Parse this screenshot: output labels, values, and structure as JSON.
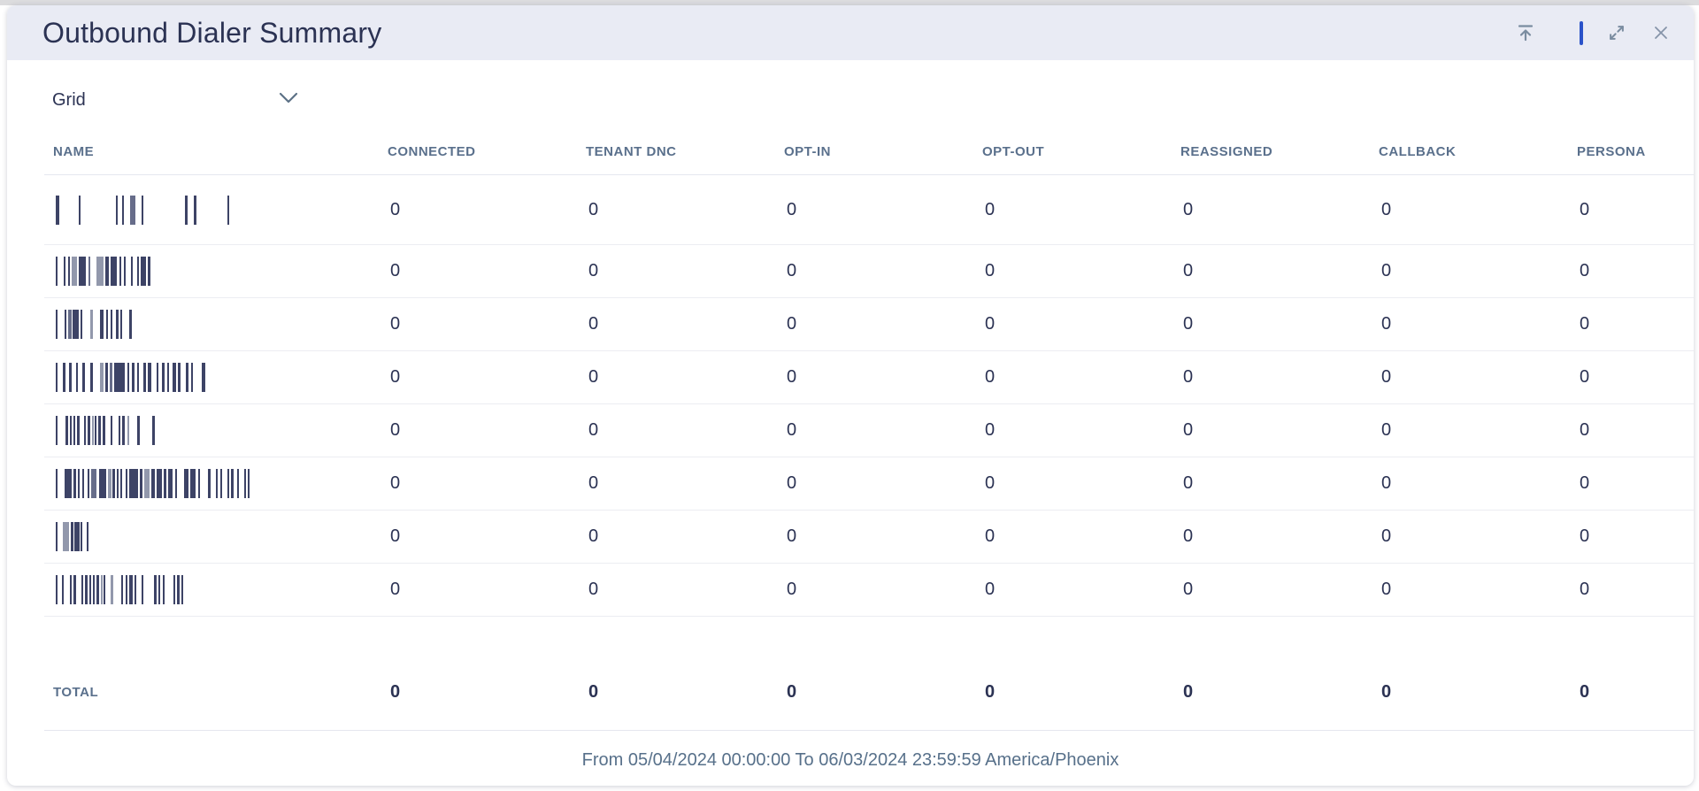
{
  "widget": {
    "title": "Outbound Dialer Summary"
  },
  "toolbar": {
    "icons": [
      {
        "name": "collapse-to-top-icon"
      },
      {
        "name": "drag-handle-bar"
      },
      {
        "name": "expand-icon"
      },
      {
        "name": "close-icon"
      }
    ]
  },
  "view_selector": {
    "value": "Grid"
  },
  "table": {
    "columns": [
      "NAME",
      "CONNECTED",
      "TENANT DNC",
      "OPT-IN",
      "OPT-OUT",
      "REASSIGNED",
      "CALLBACK",
      "PERSONA"
    ],
    "rows": [
      {
        "name_redacted": true,
        "bars": [
          [
            4,
            22,
            0
          ],
          [
            2,
            40,
            0
          ],
          [
            2,
            5,
            0
          ],
          [
            2,
            7,
            0
          ],
          [
            6,
            7,
            2
          ],
          [
            2,
            47,
            0
          ],
          [
            3,
            7,
            0
          ],
          [
            3,
            35,
            0
          ],
          [
            2,
            0,
            0
          ]
        ],
        "values": [
          "0",
          "0",
          "0",
          "0",
          "0",
          "0",
          "0"
        ]
      },
      {
        "name_redacted": true,
        "bars": [
          [
            2,
            7,
            0
          ],
          [
            2,
            3,
            0
          ],
          [
            2,
            2,
            0
          ],
          [
            6,
            2,
            1
          ],
          [
            8,
            3,
            0
          ],
          [
            2,
            7,
            2
          ],
          [
            8,
            2,
            1
          ],
          [
            4,
            2,
            0
          ],
          [
            7,
            3,
            0
          ],
          [
            2,
            3,
            0
          ],
          [
            2,
            6,
            0
          ],
          [
            2,
            5,
            0
          ],
          [
            2,
            2,
            0
          ],
          [
            6,
            2,
            0
          ],
          [
            3,
            0,
            0
          ]
        ],
        "values": [
          "0",
          "0",
          "0",
          "0",
          "0",
          "0",
          "0"
        ]
      },
      {
        "name_redacted": true,
        "bars": [
          [
            2,
            8,
            0
          ],
          [
            2,
            2,
            0
          ],
          [
            4,
            1,
            2
          ],
          [
            7,
            2,
            0
          ],
          [
            2,
            9,
            0
          ],
          [
            3,
            8,
            1
          ],
          [
            4,
            3,
            0
          ],
          [
            2,
            3,
            0
          ],
          [
            2,
            4,
            0
          ],
          [
            3,
            2,
            0
          ],
          [
            2,
            8,
            0
          ],
          [
            3,
            0,
            0
          ]
        ],
        "values": [
          "0",
          "0",
          "0",
          "0",
          "0",
          "0",
          "0"
        ]
      },
      {
        "name_redacted": true,
        "bars": [
          [
            2,
            6,
            0
          ],
          [
            3,
            4,
            0
          ],
          [
            3,
            5,
            0
          ],
          [
            2,
            5,
            0
          ],
          [
            3,
            6,
            0
          ],
          [
            3,
            8,
            0
          ],
          [
            4,
            2,
            1
          ],
          [
            3,
            2,
            0
          ],
          [
            3,
            2,
            2
          ],
          [
            12,
            3,
            0
          ],
          [
            2,
            3,
            0
          ],
          [
            3,
            3,
            0
          ],
          [
            2,
            5,
            0
          ],
          [
            3,
            2,
            0
          ],
          [
            4,
            6,
            0
          ],
          [
            2,
            4,
            0
          ],
          [
            3,
            3,
            0
          ],
          [
            2,
            4,
            0
          ],
          [
            4,
            2,
            0
          ],
          [
            3,
            6,
            0
          ],
          [
            3,
            3,
            0
          ],
          [
            2,
            10,
            0
          ],
          [
            4,
            0,
            0
          ]
        ],
        "values": [
          "0",
          "0",
          "0",
          "0",
          "0",
          "0",
          "0"
        ]
      },
      {
        "name_redacted": true,
        "bars": [
          [
            2,
            9,
            0
          ],
          [
            3,
            2,
            0
          ],
          [
            2,
            2,
            0
          ],
          [
            2,
            2,
            0
          ],
          [
            3,
            5,
            0
          ],
          [
            2,
            2,
            0
          ],
          [
            3,
            2,
            0
          ],
          [
            2,
            1,
            1
          ],
          [
            2,
            2,
            0
          ],
          [
            3,
            2,
            0
          ],
          [
            3,
            6,
            0
          ],
          [
            2,
            7,
            0
          ],
          [
            2,
            2,
            0
          ],
          [
            3,
            3,
            0
          ],
          [
            2,
            9,
            1
          ],
          [
            3,
            14,
            0
          ],
          [
            3,
            0,
            0
          ]
        ],
        "values": [
          "0",
          "0",
          "0",
          "0",
          "0",
          "0",
          "0"
        ]
      },
      {
        "name_redacted": true,
        "bars": [
          [
            2,
            8,
            0
          ],
          [
            8,
            2,
            0
          ],
          [
            3,
            2,
            0
          ],
          [
            2,
            3,
            0
          ],
          [
            2,
            4,
            0
          ],
          [
            2,
            2,
            0
          ],
          [
            6,
            3,
            2
          ],
          [
            8,
            2,
            0
          ],
          [
            4,
            1,
            1
          ],
          [
            3,
            2,
            0
          ],
          [
            2,
            2,
            0
          ],
          [
            2,
            4,
            0
          ],
          [
            2,
            2,
            0
          ],
          [
            10,
            2,
            0
          ],
          [
            3,
            2,
            0
          ],
          [
            6,
            2,
            1
          ],
          [
            4,
            2,
            0
          ],
          [
            6,
            2,
            0
          ],
          [
            3,
            2,
            0
          ],
          [
            5,
            3,
            0
          ],
          [
            2,
            8,
            0
          ],
          [
            5,
            2,
            0
          ],
          [
            6,
            3,
            0
          ],
          [
            2,
            9,
            0
          ],
          [
            3,
            6,
            0
          ],
          [
            2,
            3,
            0
          ],
          [
            2,
            6,
            0
          ],
          [
            2,
            2,
            0
          ],
          [
            3,
            4,
            0
          ],
          [
            2,
            6,
            0
          ],
          [
            2,
            2,
            0
          ],
          [
            2,
            0,
            0
          ]
        ],
        "values": [
          "0",
          "0",
          "0",
          "0",
          "0",
          "0",
          "0"
        ]
      },
      {
        "name_redacted": true,
        "bars": [
          [
            2,
            6,
            0
          ],
          [
            7,
            2,
            1
          ],
          [
            3,
            1,
            0
          ],
          [
            6,
            1,
            0
          ],
          [
            2,
            5,
            0
          ],
          [
            2,
            0,
            0
          ]
        ],
        "values": [
          "0",
          "0",
          "0",
          "0",
          "0",
          "0",
          "0"
        ]
      },
      {
        "name_redacted": true,
        "bars": [
          [
            2,
            5,
            0
          ],
          [
            2,
            7,
            0
          ],
          [
            2,
            2,
            0
          ],
          [
            3,
            6,
            0
          ],
          [
            2,
            2,
            0
          ],
          [
            3,
            2,
            0
          ],
          [
            2,
            2,
            0
          ],
          [
            2,
            2,
            0
          ],
          [
            3,
            2,
            0
          ],
          [
            2,
            1,
            1
          ],
          [
            2,
            6,
            0
          ],
          [
            3,
            9,
            1
          ],
          [
            2,
            3,
            0
          ],
          [
            2,
            2,
            0
          ],
          [
            4,
            2,
            0
          ],
          [
            2,
            6,
            0
          ],
          [
            2,
            12,
            0
          ],
          [
            3,
            2,
            0
          ],
          [
            2,
            3,
            0
          ],
          [
            2,
            10,
            0
          ],
          [
            2,
            2,
            0
          ],
          [
            3,
            2,
            0
          ],
          [
            2,
            0,
            0
          ]
        ],
        "values": [
          "0",
          "0",
          "0",
          "0",
          "0",
          "0",
          "0"
        ]
      }
    ],
    "total": {
      "label": "TOTAL",
      "values": [
        "0",
        "0",
        "0",
        "0",
        "0",
        "0",
        "0"
      ]
    }
  },
  "footer": {
    "date_range": "From 05/04/2024 00:00:00 To 06/03/2024 23:59:59 America/Phoenix"
  },
  "colors": {
    "accent_blue": "#2a52c9",
    "header_bg": "#e9ebf4",
    "title_text": "#2b3253",
    "muted_text": "#5a708c",
    "bar_shades": [
      "#3d4366",
      "#9298ac",
      "#676d8a"
    ]
  }
}
